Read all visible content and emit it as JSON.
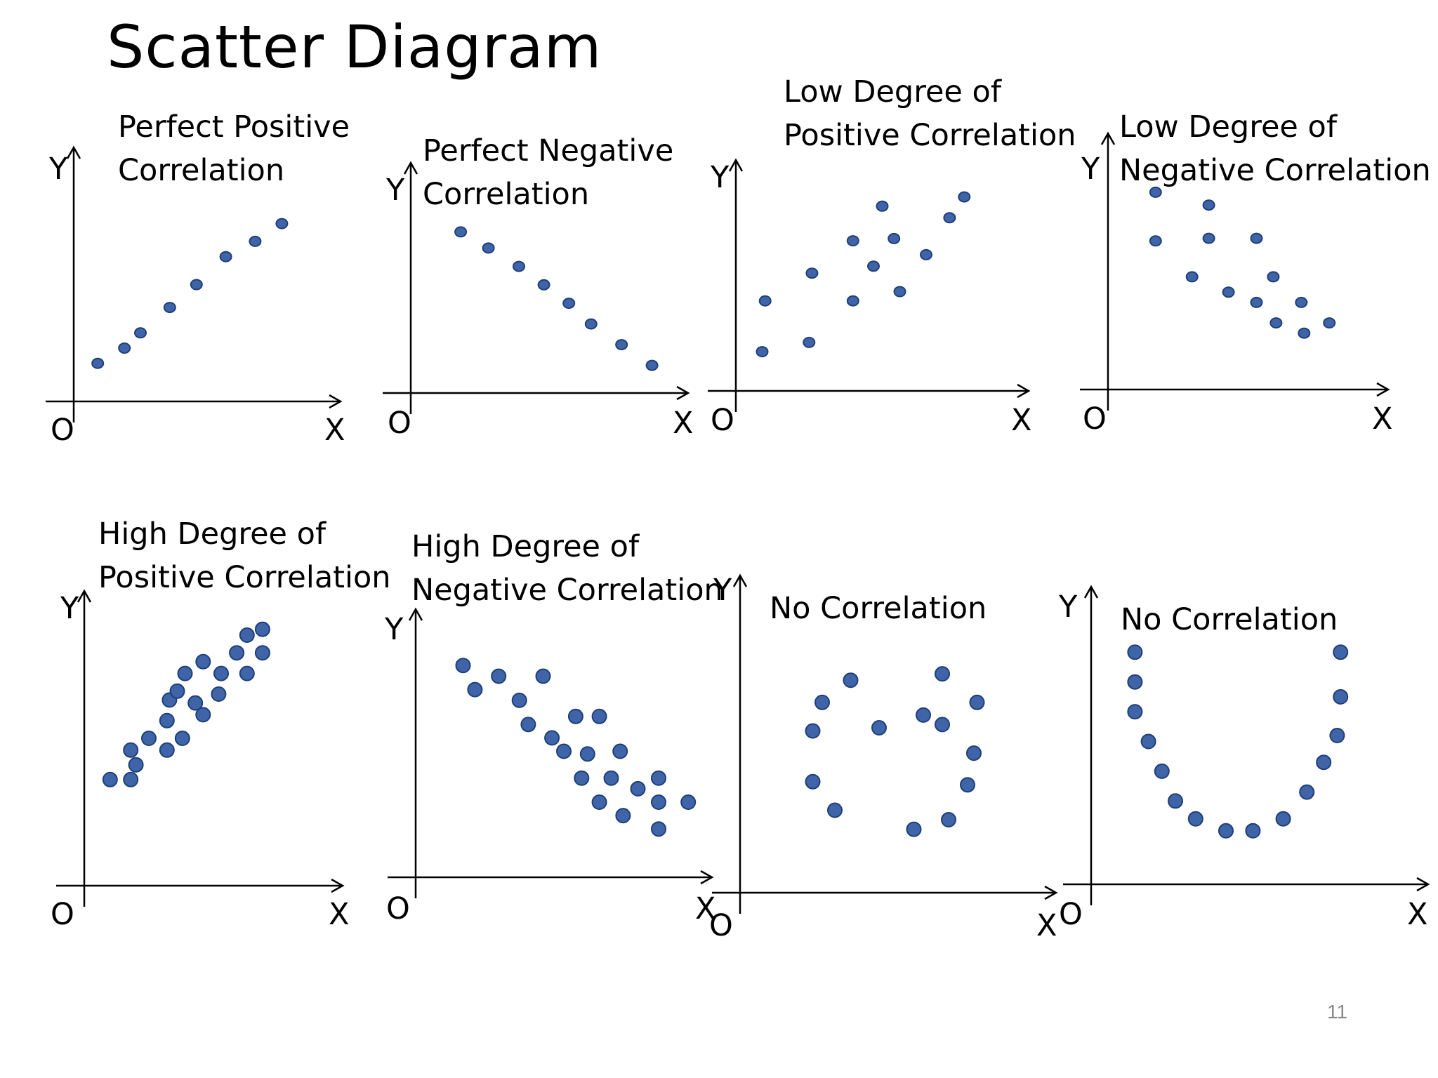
{
  "slide": {
    "title": "Scatter Diagram",
    "page_number": "11"
  },
  "colors": {
    "point_fill": "#3f64a8",
    "point_stroke": "#1f3f78",
    "axis": "#000000"
  },
  "chart_data": [
    {
      "type": "scatter",
      "title": "Perfect Positive Correlation",
      "title_lines": [
        "Perfect Positive",
        "Correlation"
      ],
      "xlabel": "X",
      "ylabel": "Y",
      "origin_label": "O",
      "xlim": [
        0,
        10
      ],
      "ylim": [
        0,
        10
      ],
      "points": [
        [
          0.9,
          1.5
        ],
        [
          1.9,
          2.1
        ],
        [
          2.5,
          2.7
        ],
        [
          3.6,
          3.7
        ],
        [
          4.6,
          4.6
        ],
        [
          5.7,
          5.7
        ],
        [
          6.8,
          6.3
        ],
        [
          7.8,
          7.0
        ]
      ]
    },
    {
      "type": "scatter",
      "title": "Perfect Negative Correlation",
      "title_lines": [
        "Perfect Negative",
        "Correlation"
      ],
      "xlabel": "X",
      "ylabel": "Y",
      "origin_label": "O",
      "xlim": [
        0,
        10
      ],
      "ylim": [
        0,
        10
      ],
      "points": [
        [
          1.8,
          7.0
        ],
        [
          2.8,
          6.3
        ],
        [
          3.9,
          5.5
        ],
        [
          4.8,
          4.7
        ],
        [
          5.7,
          3.9
        ],
        [
          6.5,
          3.0
        ],
        [
          7.6,
          2.1
        ],
        [
          8.7,
          1.2
        ]
      ]
    },
    {
      "type": "scatter",
      "title": "Low Degree of Positive Correlation",
      "title_lines": [
        "Low Degree of",
        "Positive Correlation"
      ],
      "xlabel": "X",
      "ylabel": "Y",
      "origin_label": "O",
      "xlim": [
        0,
        10
      ],
      "ylim": [
        0,
        10
      ],
      "points": [
        [
          0.9,
          1.7
        ],
        [
          1.0,
          3.9
        ],
        [
          2.5,
          2.1
        ],
        [
          2.6,
          5.1
        ],
        [
          4.0,
          3.9
        ],
        [
          4.0,
          6.5
        ],
        [
          4.7,
          5.4
        ],
        [
          5.0,
          8.0
        ],
        [
          5.4,
          6.6
        ],
        [
          5.6,
          4.3
        ],
        [
          6.5,
          5.9
        ],
        [
          7.3,
          7.5
        ],
        [
          7.8,
          8.4
        ]
      ]
    },
    {
      "type": "scatter",
      "title": "Low Degree of Negative Correlation",
      "title_lines": [
        "Low Degree of",
        "Negative Correlation"
      ],
      "xlabel": "X",
      "ylabel": "Y",
      "origin_label": "O",
      "xlim": [
        0,
        10
      ],
      "ylim": [
        0,
        10
      ],
      "points": [
        [
          1.7,
          7.7
        ],
        [
          1.7,
          5.8
        ],
        [
          3.0,
          4.4
        ],
        [
          3.6,
          7.2
        ],
        [
          3.6,
          5.9
        ],
        [
          4.3,
          3.8
        ],
        [
          5.3,
          5.9
        ],
        [
          5.3,
          3.4
        ],
        [
          5.9,
          4.4
        ],
        [
          6.0,
          2.6
        ],
        [
          6.9,
          3.4
        ],
        [
          7.0,
          2.2
        ],
        [
          7.9,
          2.6
        ]
      ]
    },
    {
      "type": "scatter",
      "title": "High Degree of Positive Correlation",
      "title_lines": [
        "High Degree of",
        "Positive Correlation"
      ],
      "xlabel": "X",
      "ylabel": "Y",
      "origin_label": "O",
      "xlim": [
        0,
        10
      ],
      "ylim": [
        0,
        10
      ],
      "points": [
        [
          1.0,
          3.6
        ],
        [
          1.8,
          3.6
        ],
        [
          2.0,
          4.1
        ],
        [
          1.8,
          4.6
        ],
        [
          2.5,
          5.0
        ],
        [
          3.2,
          4.6
        ],
        [
          3.2,
          5.6
        ],
        [
          3.3,
          6.3
        ],
        [
          3.6,
          6.6
        ],
        [
          3.9,
          7.2
        ],
        [
          3.8,
          5.0
        ],
        [
          4.3,
          6.2
        ],
        [
          4.6,
          7.6
        ],
        [
          4.6,
          5.8
        ],
        [
          5.2,
          6.5
        ],
        [
          5.3,
          7.2
        ],
        [
          5.9,
          7.9
        ],
        [
          6.3,
          8.5
        ],
        [
          6.3,
          7.2
        ],
        [
          6.9,
          7.9
        ],
        [
          6.9,
          8.7
        ]
      ]
    },
    {
      "type": "scatter",
      "title": "High Degree of Negative Correlation",
      "title_lines": [
        "High Degree of",
        "Negative Correlation"
      ],
      "xlabel": "X",
      "ylabel": "Y",
      "origin_label": "O",
      "xlim": [
        0,
        10
      ],
      "ylim": [
        0,
        10
      ],
      "points": [
        [
          1.6,
          7.9
        ],
        [
          2.0,
          7.0
        ],
        [
          2.8,
          7.5
        ],
        [
          3.5,
          6.6
        ],
        [
          3.8,
          5.7
        ],
        [
          4.3,
          7.5
        ],
        [
          4.6,
          5.2
        ],
        [
          5.0,
          4.7
        ],
        [
          5.4,
          6.0
        ],
        [
          5.6,
          3.7
        ],
        [
          5.8,
          4.6
        ],
        [
          6.2,
          6.0
        ],
        [
          6.2,
          2.8
        ],
        [
          6.6,
          3.7
        ],
        [
          6.9,
          4.7
        ],
        [
          7.0,
          2.3
        ],
        [
          7.5,
          3.3
        ],
        [
          8.2,
          3.7
        ],
        [
          8.2,
          2.8
        ],
        [
          8.2,
          1.8
        ],
        [
          9.2,
          2.8
        ]
      ]
    },
    {
      "type": "scatter",
      "title": "No Correlation",
      "title_lines": [
        "No Correlation"
      ],
      "xlabel": "X",
      "ylabel": "Y",
      "origin_label": "O",
      "xlim": [
        0,
        10
      ],
      "ylim": [
        0,
        10
      ],
      "points": [
        [
          2.3,
          5.1
        ],
        [
          2.3,
          3.5
        ],
        [
          2.6,
          6.0
        ],
        [
          3.0,
          2.6
        ],
        [
          3.5,
          6.7
        ],
        [
          4.4,
          5.2
        ],
        [
          5.5,
          2.0
        ],
        [
          6.4,
          6.9
        ],
        [
          5.8,
          5.6
        ],
        [
          6.6,
          2.3
        ],
        [
          6.4,
          5.3
        ],
        [
          7.5,
          6.0
        ],
        [
          7.4,
          4.4
        ],
        [
          7.2,
          3.4
        ]
      ]
    },
    {
      "type": "scatter",
      "title": "No Correlation",
      "title_lines": [
        "No Correlation"
      ],
      "xlabel": "X",
      "ylabel": "Y",
      "origin_label": "O",
      "xlim": [
        0,
        10
      ],
      "ylim": [
        0,
        10
      ],
      "points": [
        [
          1.3,
          7.8
        ],
        [
          1.3,
          6.8
        ],
        [
          1.3,
          5.8
        ],
        [
          1.7,
          4.8
        ],
        [
          2.1,
          3.8
        ],
        [
          2.5,
          2.8
        ],
        [
          3.1,
          2.2
        ],
        [
          4.0,
          1.8
        ],
        [
          4.8,
          1.8
        ],
        [
          5.7,
          2.2
        ],
        [
          6.4,
          3.1
        ],
        [
          6.9,
          4.1
        ],
        [
          7.3,
          5.0
        ],
        [
          7.4,
          6.3
        ],
        [
          7.4,
          7.8
        ]
      ]
    }
  ]
}
